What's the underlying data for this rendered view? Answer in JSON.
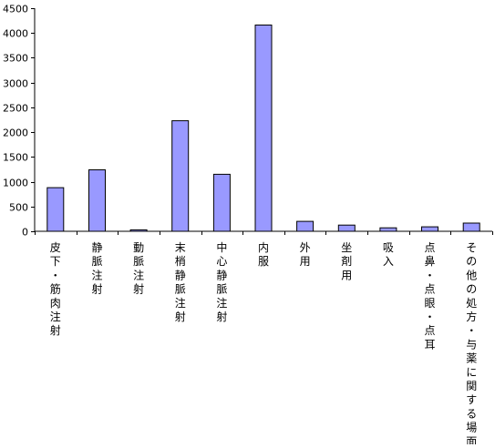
{
  "chart_data": {
    "type": "bar",
    "categories": [
      "皮下・筋肉注射",
      "静脈注射",
      "動脈注射",
      "末梢静脈注射",
      "中心静脈注射",
      "内服",
      "外用",
      "坐剤用",
      "吸入",
      "点鼻・点眼・点耳",
      "その他の処方・与薬に関する場面"
    ],
    "values": [
      880,
      1240,
      30,
      2230,
      1150,
      4160,
      200,
      125,
      70,
      90,
      165
    ],
    "title": "",
    "xlabel": "",
    "ylabel": "",
    "ylim": [
      0,
      4500
    ],
    "yticks": [
      "0",
      "500",
      "1000",
      "1500",
      "2000",
      "2500",
      "3000",
      "3500",
      "4000",
      "4500"
    ],
    "grid": false,
    "legend": "none",
    "colors": {
      "bar_fill": "#9999ff",
      "bar_stroke": "#000000",
      "axis": "#000000"
    }
  }
}
